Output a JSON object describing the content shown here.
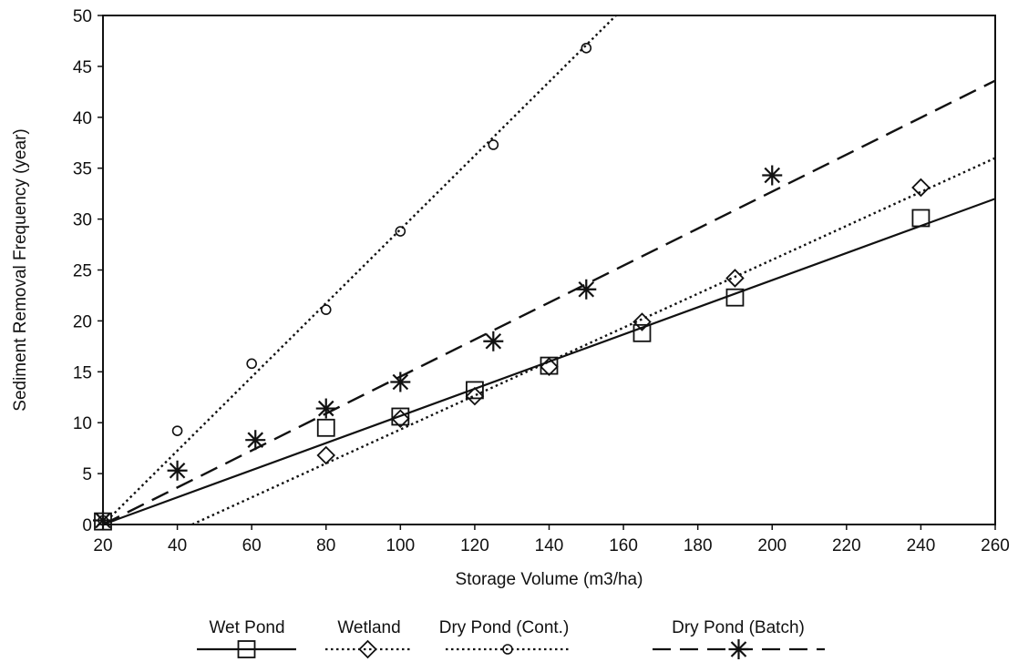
{
  "chart_data": {
    "type": "scatter",
    "title": "",
    "xlabel": "Storage Volume (m3/ha)",
    "ylabel": "Sediment Removal Frequency (year)",
    "xlim": [
      20,
      260
    ],
    "ylim": [
      0,
      50
    ],
    "xticks": [
      "20",
      "40",
      "60",
      "80",
      "100",
      "120",
      "140",
      "160",
      "180",
      "200",
      "220",
      "240",
      "260"
    ],
    "yticks": [
      "0",
      "5",
      "10",
      "15",
      "20",
      "25",
      "30",
      "35",
      "40",
      "45",
      "50"
    ],
    "grid": false,
    "legend_position": "bottom",
    "series": [
      {
        "name": "Wet Pond",
        "marker": "square",
        "line_style": "solid",
        "points": [
          [
            20,
            0.3
          ],
          [
            80,
            9.5
          ],
          [
            100,
            10.6
          ],
          [
            120,
            13.2
          ],
          [
            140,
            15.6
          ],
          [
            165,
            18.8
          ],
          [
            190,
            22.3
          ],
          [
            240,
            30.1
          ]
        ],
        "trendline": [
          [
            20,
            0.0
          ],
          [
            260,
            32.0
          ]
        ]
      },
      {
        "name": "Wetland",
        "marker": "diamond",
        "line_style": "dotted",
        "points": [
          [
            80,
            6.8
          ],
          [
            100,
            10.4
          ],
          [
            120,
            12.6
          ],
          [
            140,
            15.5
          ],
          [
            165,
            19.9
          ],
          [
            190,
            24.2
          ],
          [
            240,
            33.1
          ]
        ],
        "trendline": [
          [
            44,
            0.0
          ],
          [
            260,
            36.0
          ]
        ]
      },
      {
        "name": "Dry Pond (Cont.)",
        "marker": "circle",
        "line_style": "dotted",
        "points": [
          [
            20,
            0.4
          ],
          [
            40,
            9.2
          ],
          [
            60,
            15.8
          ],
          [
            80,
            21.1
          ],
          [
            100,
            28.8
          ],
          [
            125,
            37.3
          ],
          [
            150,
            46.8
          ]
        ],
        "trendline": [
          [
            20,
            0.0
          ],
          [
            158,
            50.0
          ]
        ]
      },
      {
        "name": "Dry Pond (Batch)",
        "marker": "asterisk",
        "line_style": "dashed",
        "points": [
          [
            20,
            0.4
          ],
          [
            40,
            5.3
          ],
          [
            61,
            8.3
          ],
          [
            80,
            11.4
          ],
          [
            100,
            14.0
          ],
          [
            125,
            18.0
          ],
          [
            150,
            23.1
          ],
          [
            200,
            34.3
          ]
        ],
        "trendline": [
          [
            20,
            0.0
          ],
          [
            260,
            43.6
          ]
        ]
      }
    ]
  },
  "colors": {
    "ink": "#111111",
    "background": "#ffffff"
  }
}
